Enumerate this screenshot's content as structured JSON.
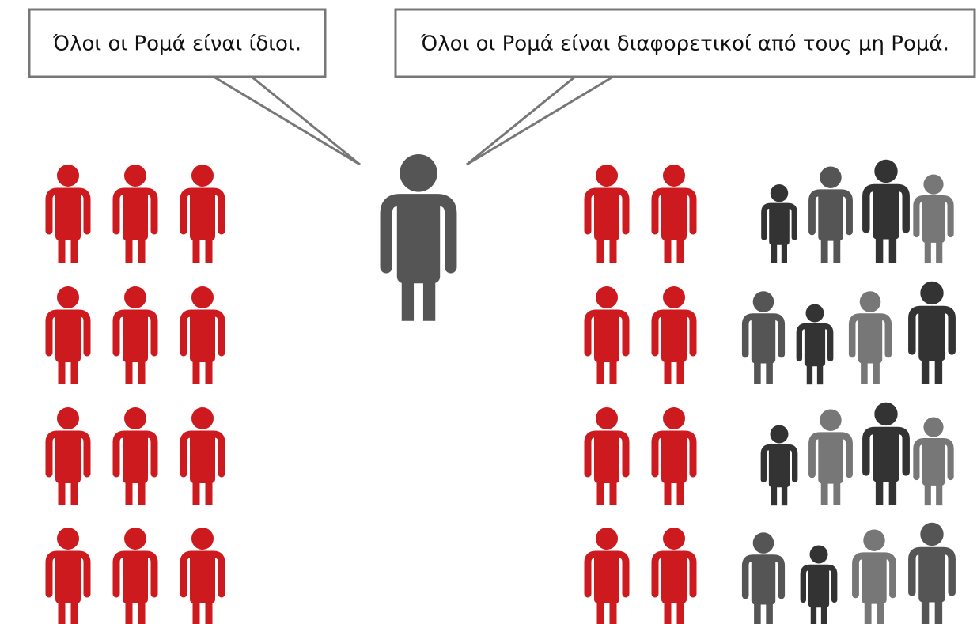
{
  "bubbles": [
    {
      "text": "Όλοι οι Ρομά είναι ίδιοι."
    },
    {
      "text": "Όλοι οι Ρομά είναι διαφορετικοί από τους μη Ρομά."
    }
  ]
}
